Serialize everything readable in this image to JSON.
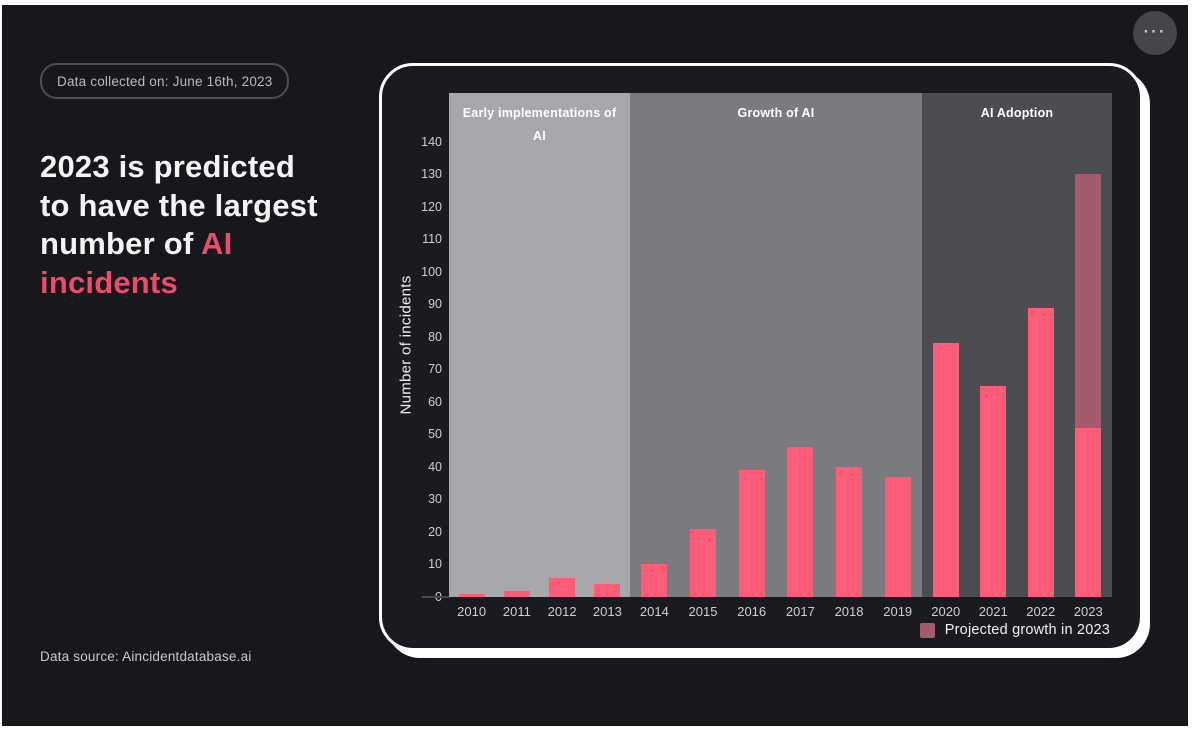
{
  "page": {
    "badge": "Data collected on: June 16th, 2023",
    "headline_prefix": "2023 is predicted to have the largest number of ",
    "headline_highlight": "AI incidents",
    "source": "Data source: Aincidentdatabase.ai"
  },
  "icons": {
    "more": "···"
  },
  "colors": {
    "page_bg": "#17181c",
    "card_bg": "#1a1b20",
    "card_border": "#ffffff",
    "headline_highlight": "#ee4a6b",
    "badge_text": "#b9babd",
    "tick_text": "#cdced1"
  },
  "chart_data": {
    "type": "bar",
    "title": "",
    "ylabel": "Number of incidents",
    "xlabel": "",
    "grid": false,
    "legend_position": "bottom-right",
    "y_ticks": [
      0,
      10,
      20,
      30,
      40,
      50,
      60,
      70,
      80,
      90,
      100,
      110,
      120,
      130,
      140
    ],
    "y_axis_top_units": 155,
    "categories": [
      "2010",
      "2011",
      "2012",
      "2013",
      "2014",
      "2015",
      "2016",
      "2017",
      "2018",
      "2019",
      "2020",
      "2021",
      "2022",
      "2023"
    ],
    "values": [
      1,
      2,
      6,
      4,
      10,
      21,
      39,
      46,
      40,
      37,
      78,
      65,
      89,
      52
    ],
    "bar_color": "#fb5d78",
    "projected": {
      "category": "2023",
      "total": 130,
      "color": "#a55b6e",
      "legend_label": "Projected growth in 2023"
    },
    "zones": [
      {
        "label": "Early implementations of AI",
        "categories": [
          "2010",
          "2011",
          "2012",
          "2013"
        ],
        "color": "#a7a8ab"
      },
      {
        "label": "Growth of AI",
        "categories": [
          "2014",
          "2015",
          "2016",
          "2017",
          "2018",
          "2019"
        ],
        "color": "#7a7b7e"
      },
      {
        "label": "AI Adoption",
        "categories": [
          "2020",
          "2021",
          "2022",
          "2023"
        ],
        "color": "#4c4d52"
      }
    ]
  }
}
